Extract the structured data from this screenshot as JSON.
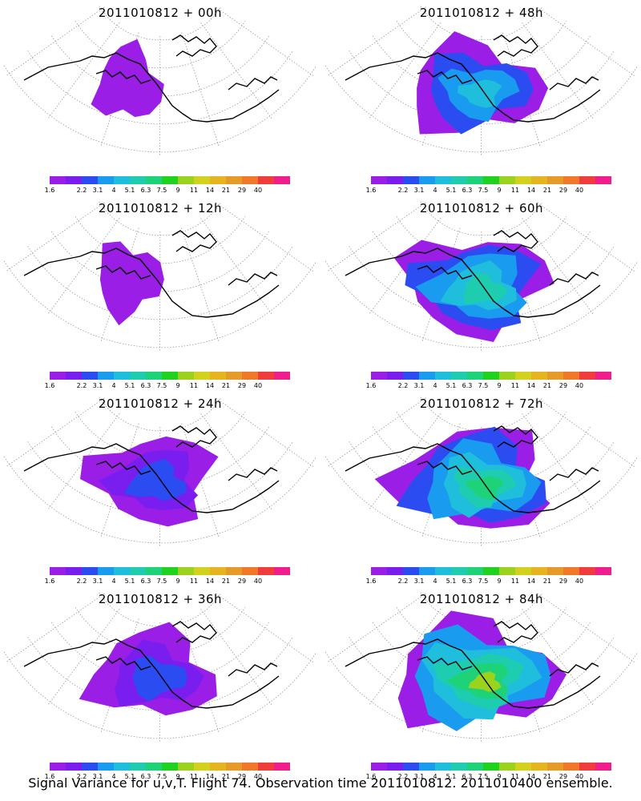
{
  "colorbar": {
    "labels": [
      "1.6",
      "2.2",
      "3.1",
      "4",
      "5.1",
      "6.3",
      "7.5",
      "9",
      "11",
      "14",
      "21",
      "29",
      "40"
    ],
    "colors": [
      "#9b1ee6",
      "#7a1ef0",
      "#2a4cf0",
      "#199bf0",
      "#1ebedc",
      "#1ecdaf",
      "#1ed278",
      "#1ed21e",
      "#9bd21e",
      "#d2d21e",
      "#e6b41e",
      "#e69b28",
      "#f07828",
      "#f03c3c",
      "#f01e8c"
    ]
  },
  "panels": [
    {
      "title": "2011010812 + 00h",
      "level": 0
    },
    {
      "title": "2011010812 + 48h",
      "level": 2
    },
    {
      "title": "2011010812 + 12h",
      "level": 0
    },
    {
      "title": "2011010812 + 60h",
      "level": 3
    },
    {
      "title": "2011010812 + 24h",
      "level": 1
    },
    {
      "title": "2011010812 + 72h",
      "level": 4
    },
    {
      "title": "2011010812 + 36h",
      "level": 1
    },
    {
      "title": "2011010812 + 84h",
      "level": 5
    }
  ],
  "caption": "Signal Variance for u,v,T. Flight 74. Observation time 2011010812. 2011010400 ensemble."
}
